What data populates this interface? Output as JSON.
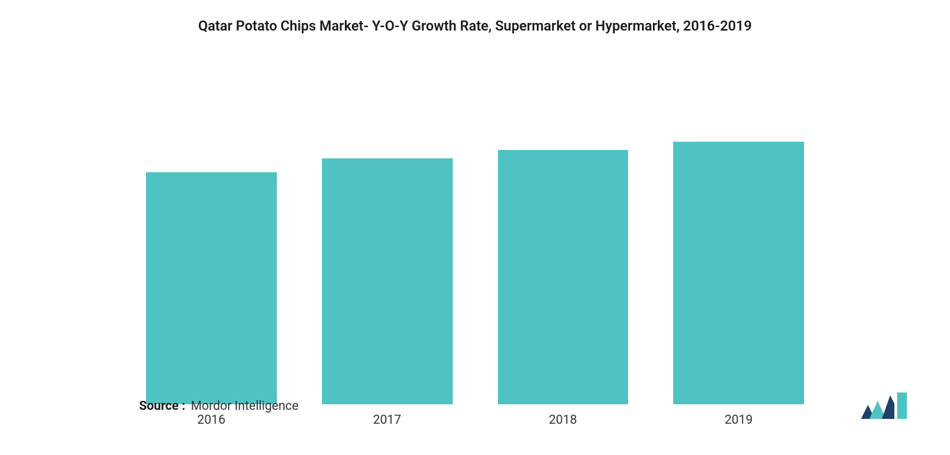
{
  "chart": {
    "type": "bar",
    "title": "Qatar Potato Chips Market- Y-O-Y Growth Rate, Supermarket or Hypermarket, 2016-2019",
    "title_fontsize": 20,
    "title_color": "#1a1a1a",
    "title_fontweight": 600,
    "categories": [
      "2016",
      "2017",
      "2018",
      "2019"
    ],
    "values": [
      334,
      354,
      366,
      378
    ],
    "max_value": 400,
    "bar_color": "#4fc3c3",
    "background_color": "#ffffff",
    "x_label_fontsize": 18,
    "x_label_color": "#333333",
    "bar_gap": 65,
    "chart_padding_x": 170
  },
  "source": {
    "label": "Source :",
    "value": "Mordor Intelligence",
    "label_fontweight": 700,
    "fontsize": 18,
    "color": "#1a1a1a"
  },
  "logo": {
    "name": "mordor-intelligence-logo",
    "color_dark": "#1d4168",
    "color_teal": "#4fc3c3"
  }
}
